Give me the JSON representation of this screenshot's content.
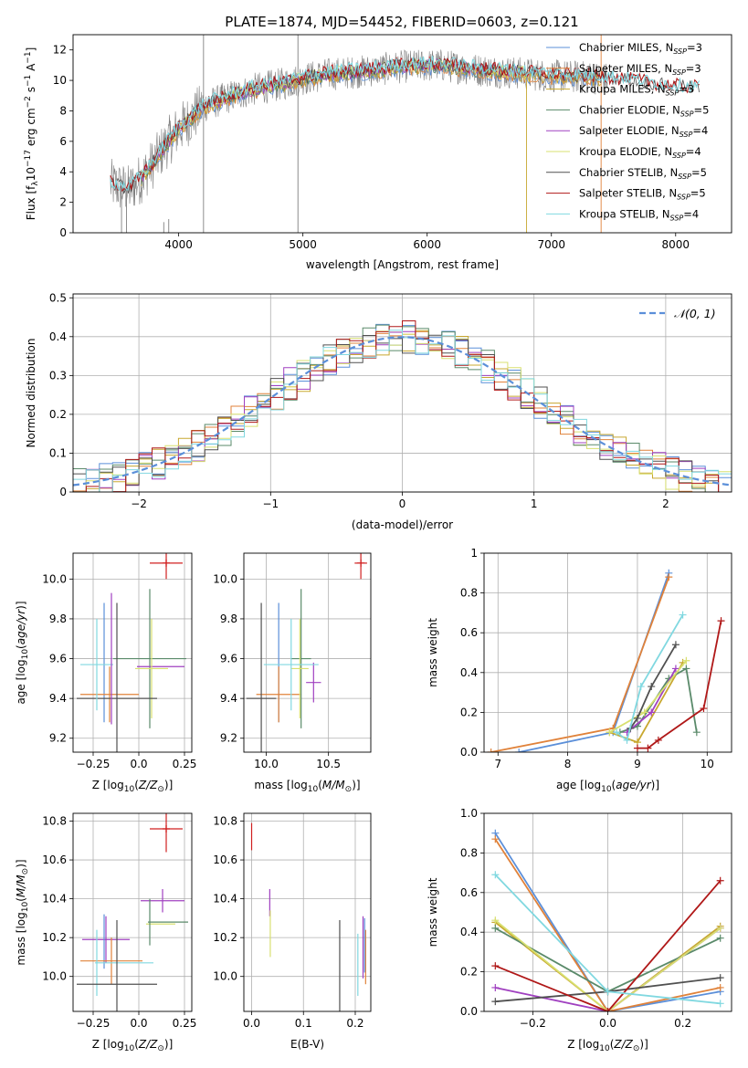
{
  "title": "PLATE=1874, MJD=54452, FIBERID=0603, z=0.121",
  "colors": {
    "chabrier_miles": "#5b8fd9",
    "salpeter_miles": "#e0823a",
    "kroupa_miles": "#c8a830",
    "chabrier_elodie": "#5a8a6a",
    "salpeter_elodie": "#a040c0",
    "kroupa_elodie": "#d8e070",
    "chabrier_stelib": "#505050",
    "salpeter_stelib": "#b01818",
    "kroupa_stelib": "#80d8e0",
    "data": "#808080",
    "normal": "#5b8fd9",
    "red_marker": "#d02020"
  },
  "chart_data": [
    {
      "id": "spectrum",
      "type": "line",
      "xlabel": "wavelength [Angstrom, rest frame]",
      "ylabel": "Flux [fλ10⁻¹⁷ erg cm⁻² s⁻¹ A⁻¹]",
      "xlim": [
        3150,
        8450
      ],
      "ylim": [
        0,
        13
      ],
      "xticks": [
        4000,
        5000,
        6000,
        7000,
        8000
      ],
      "yticks": [
        0,
        2,
        4,
        6,
        8,
        10,
        12
      ],
      "continuum": {
        "x": [
          3450,
          3600,
          3700,
          3800,
          3900,
          4000,
          4100,
          4200,
          4400,
          4600,
          4800,
          5000,
          5200,
          5500,
          5800,
          6100,
          6400,
          6700,
          7000,
          7300,
          7600,
          7900,
          8200
        ],
        "y": [
          3.2,
          2.8,
          3.6,
          4.6,
          5.8,
          6.8,
          7.5,
          8.3,
          8.9,
          9.4,
          9.7,
          10.1,
          10.4,
          10.6,
          10.9,
          11.0,
          10.7,
          10.5,
          10.3,
          10.2,
          10.0,
          9.6,
          9.4
        ]
      },
      "legend": [
        {
          "label": "Chabrier MILES, N",
          "sub": "SSP",
          "suffix": "=3",
          "color": "chabrier_miles"
        },
        {
          "label": "Salpeter MILES, N",
          "sub": "SSP",
          "suffix": "=3",
          "color": "salpeter_miles"
        },
        {
          "label": "Kroupa MILES, N",
          "sub": "SSP",
          "suffix": "=3",
          "color": "kroupa_miles"
        },
        {
          "label": "Chabrier ELODIE, N",
          "sub": "SSP",
          "suffix": "=5",
          "color": "chabrier_elodie"
        },
        {
          "label": "Salpeter ELODIE, N",
          "sub": "SSP",
          "suffix": "=4",
          "color": "salpeter_elodie"
        },
        {
          "label": "Kroupa ELODIE, N",
          "sub": "SSP",
          "suffix": "=4",
          "color": "kroupa_elodie"
        },
        {
          "label": "Chabrier STELIB, N",
          "sub": "SSP",
          "suffix": "=5",
          "color": "chabrier_stelib"
        },
        {
          "label": "Salpeter STELIB, N",
          "sub": "SSP",
          "suffix": "=5",
          "color": "salpeter_stelib"
        },
        {
          "label": "Kroupa STELIB, N",
          "sub": "SSP",
          "suffix": "=4",
          "color": "kroupa_stelib"
        }
      ]
    },
    {
      "id": "residuals",
      "type": "line",
      "xlabel": "(data-model)/error",
      "ylabel": "Normed distribution",
      "xlim": [
        -2.5,
        2.5
      ],
      "ylim": [
        0,
        0.51
      ],
      "xticks": [
        -2,
        -1,
        0,
        1,
        2
      ],
      "yticks": [
        0.0,
        0.1,
        0.2,
        0.3,
        0.4,
        0.5
      ],
      "legend": "N(0,1)",
      "grid": true
    },
    {
      "id": "age_vs_Z",
      "type": "scatter",
      "xlabel": "Z [log10(Z/Z⊙)]",
      "ylabel": "age  [log10(age/yr)]",
      "xlim": [
        -0.36,
        0.29
      ],
      "ylim": [
        9.13,
        10.13
      ],
      "xticks": [
        -0.25,
        0.0,
        0.25
      ],
      "yticks": [
        9.2,
        9.4,
        9.6,
        9.8,
        10.0
      ],
      "grid": true,
      "points": [
        {
          "x": 0.15,
          "y": 10.08,
          "xerr": 0.09,
          "yerr": 0.08,
          "color": "red_marker"
        },
        {
          "x": -0.19,
          "y": 9.58,
          "xerr": 0.0,
          "yerr": 0.3,
          "color": "chabrier_miles"
        },
        {
          "x": -0.16,
          "y": 9.42,
          "xerr": 0.16,
          "yerr": 0.14,
          "color": "salpeter_miles"
        },
        {
          "x": 0.06,
          "y": 9.6,
          "xerr": 0.2,
          "yerr": 0.35,
          "color": "chabrier_elodie"
        },
        {
          "x": 0.12,
          "y": 9.56,
          "xerr": 0.13,
          "yerr": 0.0,
          "color": "salpeter_elodie"
        },
        {
          "x": 0.07,
          "y": 9.55,
          "xerr": 0.09,
          "yerr": 0.25,
          "color": "kroupa_elodie"
        },
        {
          "x": -0.12,
          "y": 9.4,
          "xerr": 0.22,
          "yerr": 0.48,
          "color": "chabrier_stelib"
        },
        {
          "x": -0.23,
          "y": 9.57,
          "xerr": 0.09,
          "yerr": 0.23,
          "color": "kroupa_stelib"
        },
        {
          "x": -0.15,
          "y": 9.6,
          "xerr": 0.0,
          "yerr": 0.33,
          "color": "salpeter_elodie"
        }
      ]
    },
    {
      "id": "age_vs_mass",
      "type": "scatter",
      "xlabel": "mass [log10(M/M⊙)]",
      "ylabel": "",
      "xlim": [
        9.82,
        10.84
      ],
      "ylim": [
        9.13,
        10.13
      ],
      "xticks": [
        10.0,
        10.5
      ],
      "yticks": [
        9.2,
        9.4,
        9.6,
        9.8,
        10.0
      ],
      "grid": true,
      "points": [
        {
          "x": 10.76,
          "y": 10.08,
          "xerr": 0.05,
          "yerr": 0.08,
          "color": "red_marker"
        },
        {
          "x": 10.1,
          "y": 9.58,
          "xerr": 0.0,
          "yerr": 0.3,
          "color": "chabrier_miles"
        },
        {
          "x": 10.1,
          "y": 9.42,
          "xerr": 0.18,
          "yerr": 0.14,
          "color": "salpeter_miles"
        },
        {
          "x": 10.28,
          "y": 9.6,
          "xerr": 0.08,
          "yerr": 0.35,
          "color": "chabrier_elodie"
        },
        {
          "x": 10.38,
          "y": 9.48,
          "xerr": 0.06,
          "yerr": 0.1,
          "color": "salpeter_elodie"
        },
        {
          "x": 10.27,
          "y": 9.55,
          "xerr": 0.07,
          "yerr": 0.25,
          "color": "kroupa_elodie"
        },
        {
          "x": 9.96,
          "y": 9.4,
          "xerr": 0.12,
          "yerr": 0.48,
          "color": "chabrier_stelib"
        },
        {
          "x": 10.2,
          "y": 9.57,
          "xerr": 0.22,
          "yerr": 0.23,
          "color": "kroupa_stelib"
        }
      ]
    },
    {
      "id": "weight_vs_age",
      "type": "line",
      "xlabel": "age  [log10(age/yr)]",
      "ylabel": "mass weight",
      "xlim": [
        6.8,
        10.35
      ],
      "ylim": [
        0,
        1
      ],
      "xticks": [
        7,
        8,
        9,
        10
      ],
      "yticks": [
        0.0,
        0.2,
        0.4,
        0.6,
        0.8,
        1.0
      ],
      "grid": true,
      "series": [
        {
          "color": "chabrier_miles",
          "x": [
            7.3,
            8.65,
            9.45
          ],
          "y": [
            0.0,
            0.1,
            0.9
          ]
        },
        {
          "color": "salpeter_miles",
          "x": [
            6.9,
            8.65,
            9.45
          ],
          "y": [
            0.0,
            0.12,
            0.88
          ]
        },
        {
          "color": "kroupa_miles",
          "x": [
            8.6,
            9.0,
            9.65
          ],
          "y": [
            0.1,
            0.05,
            0.45
          ]
        },
        {
          "color": "chabrier_elodie",
          "x": [
            8.75,
            9.0,
            9.45,
            9.7,
            9.85
          ],
          "y": [
            0.1,
            0.13,
            0.37,
            0.42,
            0.1
          ]
        },
        {
          "color": "salpeter_elodie",
          "x": [
            8.85,
            9.2,
            9.55
          ],
          "y": [
            0.1,
            0.2,
            0.42
          ]
        },
        {
          "color": "kroupa_elodie",
          "x": [
            8.6,
            9.1,
            9.7
          ],
          "y": [
            0.1,
            0.2,
            0.46
          ]
        },
        {
          "color": "chabrier_stelib",
          "x": [
            8.9,
            9.0,
            9.2,
            9.55
          ],
          "y": [
            0.12,
            0.17,
            0.33,
            0.54
          ]
        },
        {
          "color": "salpeter_stelib",
          "x": [
            9.0,
            9.15,
            9.3,
            9.95,
            10.2
          ],
          "y": [
            0.02,
            0.02,
            0.06,
            0.22,
            0.66
          ]
        },
        {
          "color": "kroupa_stelib",
          "x": [
            8.7,
            8.85,
            9.05,
            9.65
          ],
          "y": [
            0.1,
            0.06,
            0.33,
            0.69
          ]
        }
      ]
    },
    {
      "id": "mass_vs_Z",
      "type": "scatter",
      "xlabel": "Z [log10(Z/Z⊙)]",
      "ylabel": "mass [log10(M/M⊙)]",
      "xlim": [
        -0.36,
        0.29
      ],
      "ylim": [
        9.82,
        10.84
      ],
      "xticks": [
        -0.25,
        0.0,
        0.25
      ],
      "yticks": [
        10.0,
        10.2,
        10.4,
        10.6,
        10.8
      ],
      "grid": true,
      "points": [
        {
          "x": 0.15,
          "y": 10.76,
          "xerr": 0.09,
          "yerr": 0.12,
          "color": "red_marker"
        },
        {
          "x": 0.13,
          "y": 10.39,
          "xerr": 0.12,
          "yerr": 0.06,
          "color": "salpeter_elodie"
        },
        {
          "x": 0.16,
          "y": 10.28,
          "xerr": 0.11,
          "yerr": 0.0,
          "color": "chabrier_elodie"
        },
        {
          "x": 0.12,
          "y": 10.27,
          "xerr": 0.08,
          "yerr": 0.0,
          "color": "kroupa_elodie"
        },
        {
          "x": -0.18,
          "y": 10.19,
          "xerr": 0.13,
          "yerr": 0.12,
          "color": "salpeter_elodie"
        },
        {
          "x": -0.19,
          "y": 10.18,
          "xerr": 0.0,
          "yerr": 0.14,
          "color": "chabrier_miles"
        },
        {
          "x": -0.15,
          "y": 10.08,
          "xerr": 0.17,
          "yerr": 0.12,
          "color": "salpeter_miles"
        },
        {
          "x": -0.23,
          "y": 10.07,
          "xerr": 0.0,
          "yerr": 0.17,
          "color": "kroupa_stelib"
        },
        {
          "x": -0.08,
          "y": 10.07,
          "xerr": 0.16,
          "yerr": 0.0,
          "color": "kroupa_stelib"
        },
        {
          "x": -0.12,
          "y": 9.96,
          "xerr": 0.22,
          "yerr": 0.33,
          "color": "chabrier_stelib"
        },
        {
          "x": 0.06,
          "y": 10.28,
          "xerr": 0.0,
          "yerr": 0.12,
          "color": "chabrier_elodie"
        }
      ]
    },
    {
      "id": "mass_vs_ebv",
      "type": "scatter",
      "xlabel": "E(B-V)",
      "ylabel": "",
      "xlim": [
        -0.015,
        0.23
      ],
      "ylim": [
        9.82,
        10.84
      ],
      "xticks": [
        0.0,
        0.1,
        0.2
      ],
      "yticks": [
        10.0,
        10.2,
        10.4,
        10.6,
        10.8
      ],
      "grid": true,
      "points": [
        {
          "x": 0.0,
          "y": 10.72,
          "xerr": 0.0,
          "yerr": 0.07,
          "color": "red_marker"
        },
        {
          "x": 0.035,
          "y": 10.38,
          "xerr": 0.0,
          "yerr": 0.07,
          "color": "salpeter_elodie"
        },
        {
          "x": 0.036,
          "y": 10.22,
          "xerr": 0.0,
          "yerr": 0.12,
          "color": "kroupa_elodie"
        },
        {
          "x": 0.17,
          "y": 10.03,
          "xerr": 0.0,
          "yerr": 0.26,
          "color": "chabrier_stelib"
        },
        {
          "x": 0.205,
          "y": 10.06,
          "xerr": 0.0,
          "yerr": 0.16,
          "color": "kroupa_stelib"
        },
        {
          "x": 0.215,
          "y": 10.15,
          "xerr": 0.0,
          "yerr": 0.16,
          "color": "salpeter_elodie"
        },
        {
          "x": 0.22,
          "y": 10.1,
          "xerr": 0.0,
          "yerr": 0.14,
          "color": "salpeter_miles"
        },
        {
          "x": 0.218,
          "y": 10.16,
          "xerr": 0.0,
          "yerr": 0.14,
          "color": "chabrier_miles"
        }
      ]
    },
    {
      "id": "weight_vs_Z",
      "type": "line",
      "xlabel": "Z [log10(Z/Z⊙)]",
      "ylabel": "mass weight",
      "xlim": [
        -0.33,
        0.33
      ],
      "ylim": [
        0,
        1
      ],
      "xticks": [
        -0.2,
        0.0,
        0.2
      ],
      "yticks": [
        0.0,
        0.2,
        0.4,
        0.6,
        0.8,
        1.0
      ],
      "grid": true,
      "series": [
        {
          "color": "chabrier_miles",
          "x": [
            -0.3,
            0.0,
            0.3
          ],
          "y": [
            0.9,
            0.0,
            0.1
          ]
        },
        {
          "color": "salpeter_miles",
          "x": [
            -0.3,
            0.0,
            0.3
          ],
          "y": [
            0.87,
            0.0,
            0.12
          ]
        },
        {
          "color": "kroupa_miles",
          "x": [
            -0.3,
            0.0,
            0.3
          ],
          "y": [
            0.45,
            0.0,
            0.43
          ]
        },
        {
          "color": "chabrier_elodie",
          "x": [
            -0.3,
            0.0,
            0.3
          ],
          "y": [
            0.42,
            0.1,
            0.37
          ]
        },
        {
          "color": "salpeter_elodie",
          "x": [
            -0.3,
            0.0,
            0.3
          ],
          "y": [
            0.12,
            0.0,
            0.42
          ]
        },
        {
          "color": "kroupa_elodie",
          "x": [
            -0.3,
            0.0,
            0.3
          ],
          "y": [
            0.46,
            0.0,
            0.42
          ]
        },
        {
          "color": "chabrier_stelib",
          "x": [
            -0.3,
            0.0,
            0.3
          ],
          "y": [
            0.05,
            0.1,
            0.17
          ]
        },
        {
          "color": "salpeter_stelib",
          "x": [
            -0.3,
            0.0,
            0.3
          ],
          "y": [
            0.23,
            0.0,
            0.66
          ]
        },
        {
          "color": "kroupa_stelib",
          "x": [
            -0.3,
            0.0,
            0.3
          ],
          "y": [
            0.69,
            0.1,
            0.04
          ]
        }
      ]
    }
  ]
}
